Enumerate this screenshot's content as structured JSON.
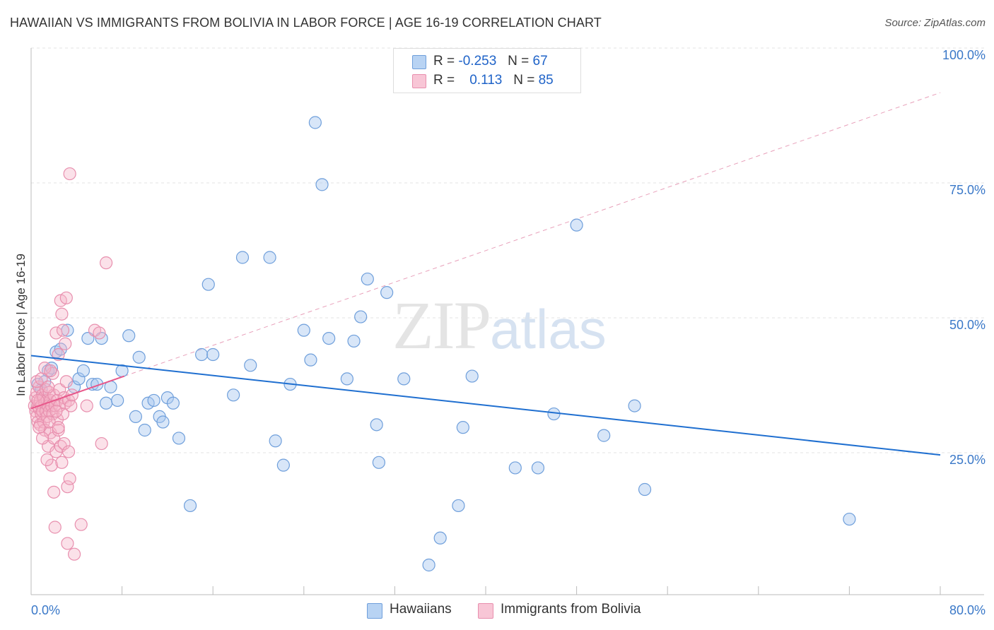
{
  "title": "HAWAIIAN VS IMMIGRANTS FROM BOLIVIA IN LABOR FORCE | AGE 16-19 CORRELATION CHART",
  "source": "Source: ZipAtlas.com",
  "watermark": {
    "zip": "ZIP",
    "atlas": "atlas"
  },
  "colors": {
    "blue": "#1f6fd0",
    "blue_fill": "#a8c8f0",
    "pink": "#e8578a",
    "pink_fill": "#f5b5c8",
    "tick_blue": "#3a78c8"
  },
  "legend": {
    "rows": [
      {
        "r_label": "R =",
        "r_value": "-0.253",
        "n_label": "N =",
        "n_value": "67"
      },
      {
        "r_label": "R =",
        "r_value": "0.113",
        "n_label": "N =",
        "n_value": "85"
      }
    ]
  },
  "bottom_legend": [
    "Hawaiians",
    "Immigrants from Bolivia"
  ],
  "chart_data": {
    "type": "scatter",
    "title": "HAWAIIAN VS IMMIGRANTS FROM BOLIVIA IN LABOR FORCE | AGE 16-19 CORRELATION CHART",
    "xlabel": "",
    "ylabel": "In Labor Force | Age 16-19",
    "xlim": [
      0,
      80
    ],
    "ylim": [
      0,
      100
    ],
    "x_tick_labels": [
      "0.0%",
      "80.0%"
    ],
    "y_tick_labels": [
      {
        "value": 25,
        "label": "25.0%"
      },
      {
        "value": 50,
        "label": "50.0%"
      },
      {
        "value": 75,
        "label": "75.0%"
      },
      {
        "value": 100,
        "label": "100.0%"
      }
    ],
    "series": [
      {
        "name": "Hawaiians",
        "r": -0.253,
        "n": 67,
        "trend": {
          "x0": 0,
          "y0": 44.3,
          "x1": 80,
          "y1": 25.9
        },
        "points": [
          [
            0.6,
            39
          ],
          [
            0.9,
            38
          ],
          [
            1.2,
            39.5
          ],
          [
            1.5,
            41.5
          ],
          [
            1.8,
            42
          ],
          [
            2.2,
            45
          ],
          [
            2.6,
            45.5
          ],
          [
            3.2,
            49
          ],
          [
            3.8,
            38.5
          ],
          [
            4.2,
            40
          ],
          [
            4.6,
            41.5
          ],
          [
            5.0,
            47.5
          ],
          [
            5.4,
            39
          ],
          [
            5.8,
            39
          ],
          [
            6.2,
            47.5
          ],
          [
            6.6,
            35.5
          ],
          [
            7.0,
            38.5
          ],
          [
            7.6,
            36
          ],
          [
            8.0,
            41.5
          ],
          [
            8.6,
            48
          ],
          [
            9.2,
            33
          ],
          [
            9.5,
            44
          ],
          [
            10.0,
            30.5
          ],
          [
            10.3,
            35.5
          ],
          [
            10.8,
            36
          ],
          [
            11.3,
            33
          ],
          [
            11.6,
            32
          ],
          [
            12.0,
            36.5
          ],
          [
            12.5,
            35.5
          ],
          [
            13.0,
            29
          ],
          [
            14.0,
            16.5
          ],
          [
            15.0,
            44.5
          ],
          [
            15.6,
            57.5
          ],
          [
            16.0,
            44.5
          ],
          [
            17.8,
            37
          ],
          [
            18.6,
            62.5
          ],
          [
            19.3,
            42.5
          ],
          [
            21.0,
            62.5
          ],
          [
            21.5,
            28.5
          ],
          [
            22.2,
            24
          ],
          [
            22.8,
            39
          ],
          [
            24.0,
            49
          ],
          [
            24.6,
            43.5
          ],
          [
            25.0,
            87.5
          ],
          [
            25.6,
            76
          ],
          [
            26.2,
            47.5
          ],
          [
            27.8,
            40
          ],
          [
            28.4,
            47
          ],
          [
            29.0,
            51.5
          ],
          [
            29.6,
            58.5
          ],
          [
            30.4,
            31.5
          ],
          [
            30.6,
            24.5
          ],
          [
            31.3,
            56
          ],
          [
            32.8,
            40
          ],
          [
            35.0,
            5.5
          ],
          [
            36.0,
            10.5
          ],
          [
            37.6,
            16.5
          ],
          [
            38.0,
            31
          ],
          [
            42.6,
            23.5
          ],
          [
            44.6,
            23.5
          ],
          [
            46.0,
            33.5
          ],
          [
            48.0,
            68.5
          ],
          [
            50.4,
            29.5
          ],
          [
            53.1,
            35
          ],
          [
            54.0,
            19.5
          ],
          [
            72.0,
            14
          ],
          [
            38.8,
            40.5
          ]
        ]
      },
      {
        "name": "Immigrants from Bolivia",
        "r": 0.113,
        "n": 85,
        "trend": {
          "x0": 0,
          "y0": 34.5,
          "x1": 8.2,
          "y1": 40.5
        },
        "points": [
          [
            0.3,
            35
          ],
          [
            0.4,
            34
          ],
          [
            0.4,
            36.5
          ],
          [
            0.5,
            33
          ],
          [
            0.5,
            37.5
          ],
          [
            0.6,
            35
          ],
          [
            0.6,
            32
          ],
          [
            0.7,
            34.5
          ],
          [
            0.7,
            38.5
          ],
          [
            0.8,
            36
          ],
          [
            0.8,
            31.5
          ],
          [
            0.9,
            35
          ],
          [
            0.9,
            33.5
          ],
          [
            1.0,
            37
          ],
          [
            1.0,
            34
          ],
          [
            1.1,
            36.5
          ],
          [
            1.1,
            32
          ],
          [
            1.2,
            35.5
          ],
          [
            1.2,
            30.5
          ],
          [
            1.3,
            34
          ],
          [
            1.3,
            38
          ],
          [
            1.4,
            36
          ],
          [
            1.4,
            33
          ],
          [
            1.5,
            35
          ],
          [
            1.5,
            27.5
          ],
          [
            1.6,
            37.5
          ],
          [
            1.6,
            34
          ],
          [
            1.7,
            30
          ],
          [
            1.7,
            36
          ],
          [
            1.8,
            24
          ],
          [
            1.8,
            35
          ],
          [
            1.9,
            33.5
          ],
          [
            1.9,
            41
          ],
          [
            2.0,
            37
          ],
          [
            2.0,
            29
          ],
          [
            2.0,
            19
          ],
          [
            2.1,
            12.5
          ],
          [
            2.1,
            35
          ],
          [
            2.2,
            48.5
          ],
          [
            2.2,
            26.5
          ],
          [
            2.3,
            36
          ],
          [
            2.3,
            32.5
          ],
          [
            2.4,
            44.5
          ],
          [
            2.4,
            30.5
          ],
          [
            2.5,
            38
          ],
          [
            2.5,
            35
          ],
          [
            2.6,
            27.5
          ],
          [
            2.6,
            54.5
          ],
          [
            2.7,
            52
          ],
          [
            2.7,
            24.5
          ],
          [
            2.8,
            49
          ],
          [
            2.8,
            33.5
          ],
          [
            2.9,
            36.5
          ],
          [
            2.9,
            28
          ],
          [
            3.0,
            46.5
          ],
          [
            3.0,
            35.5
          ],
          [
            3.1,
            39.5
          ],
          [
            3.1,
            55
          ],
          [
            3.2,
            20
          ],
          [
            3.2,
            9.5
          ],
          [
            3.3,
            36
          ],
          [
            3.3,
            26.5
          ],
          [
            3.4,
            21.5
          ],
          [
            3.4,
            78
          ],
          [
            3.5,
            35
          ],
          [
            3.6,
            37
          ],
          [
            3.8,
            7.5
          ],
          [
            4.4,
            13
          ],
          [
            4.9,
            35
          ],
          [
            5.6,
            49
          ],
          [
            6.0,
            48.5
          ],
          [
            6.2,
            28
          ],
          [
            6.6,
            61.5
          ],
          [
            0.5,
            39.5
          ],
          [
            0.6,
            36
          ],
          [
            0.7,
            31
          ],
          [
            0.9,
            40
          ],
          [
            1.0,
            29
          ],
          [
            1.2,
            42
          ],
          [
            1.4,
            25
          ],
          [
            1.5,
            38.5
          ],
          [
            1.6,
            32
          ],
          [
            1.7,
            41.5
          ],
          [
            2.2,
            34
          ],
          [
            2.4,
            31
          ]
        ]
      }
    ]
  }
}
